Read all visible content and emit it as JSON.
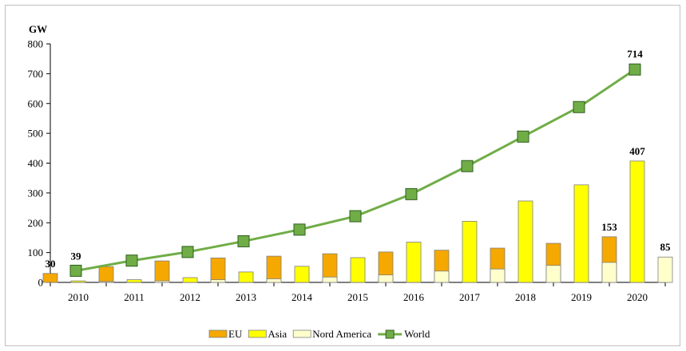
{
  "chart_data": {
    "type": "bar",
    "y_unit": "GW",
    "categories": [
      "2010",
      "2011",
      "2012",
      "2013",
      "2014",
      "2015",
      "2016",
      "2017",
      "2018",
      "2019",
      "2020"
    ],
    "ylim": [
      0,
      800
    ],
    "yticks": [
      "0",
      "100",
      "200",
      "300",
      "400",
      "500",
      "600",
      "700",
      "800"
    ],
    "grid": false,
    "legend_position": "bottom",
    "series": [
      {
        "name": "EU",
        "kind": "bar",
        "color": "#f5a800",
        "values": [
          30,
          53,
          72,
          82,
          88,
          96,
          102,
          108,
          115,
          131,
          153
        ]
      },
      {
        "name": "Asia",
        "kind": "bar",
        "color": "#ffff00",
        "values": [
          5,
          9,
          16,
          35,
          54,
          83,
          135,
          205,
          273,
          327,
          407
        ]
      },
      {
        "name": "Nord America",
        "kind": "bar",
        "color": "#ffffcc",
        "values": [
          3,
          5,
          9,
          12,
          18,
          25,
          38,
          45,
          57,
          67,
          85
        ]
      },
      {
        "name": "World",
        "kind": "line",
        "color": "#70ad47",
        "marker_color": "#70ad47",
        "values": [
          39,
          73,
          102,
          138,
          177,
          222,
          296,
          390,
          489,
          588,
          714
        ]
      }
    ],
    "data_labels": [
      {
        "series": "EU",
        "category": "2010",
        "text": "30"
      },
      {
        "series": "World",
        "category": "2010",
        "text": "39"
      },
      {
        "series": "EU",
        "category": "2020",
        "text": "153"
      },
      {
        "series": "Asia",
        "category": "2020",
        "text": "407"
      },
      {
        "series": "Nord America",
        "category": "2020",
        "text": "85"
      },
      {
        "series": "World",
        "category": "2020",
        "text": "714"
      }
    ]
  }
}
